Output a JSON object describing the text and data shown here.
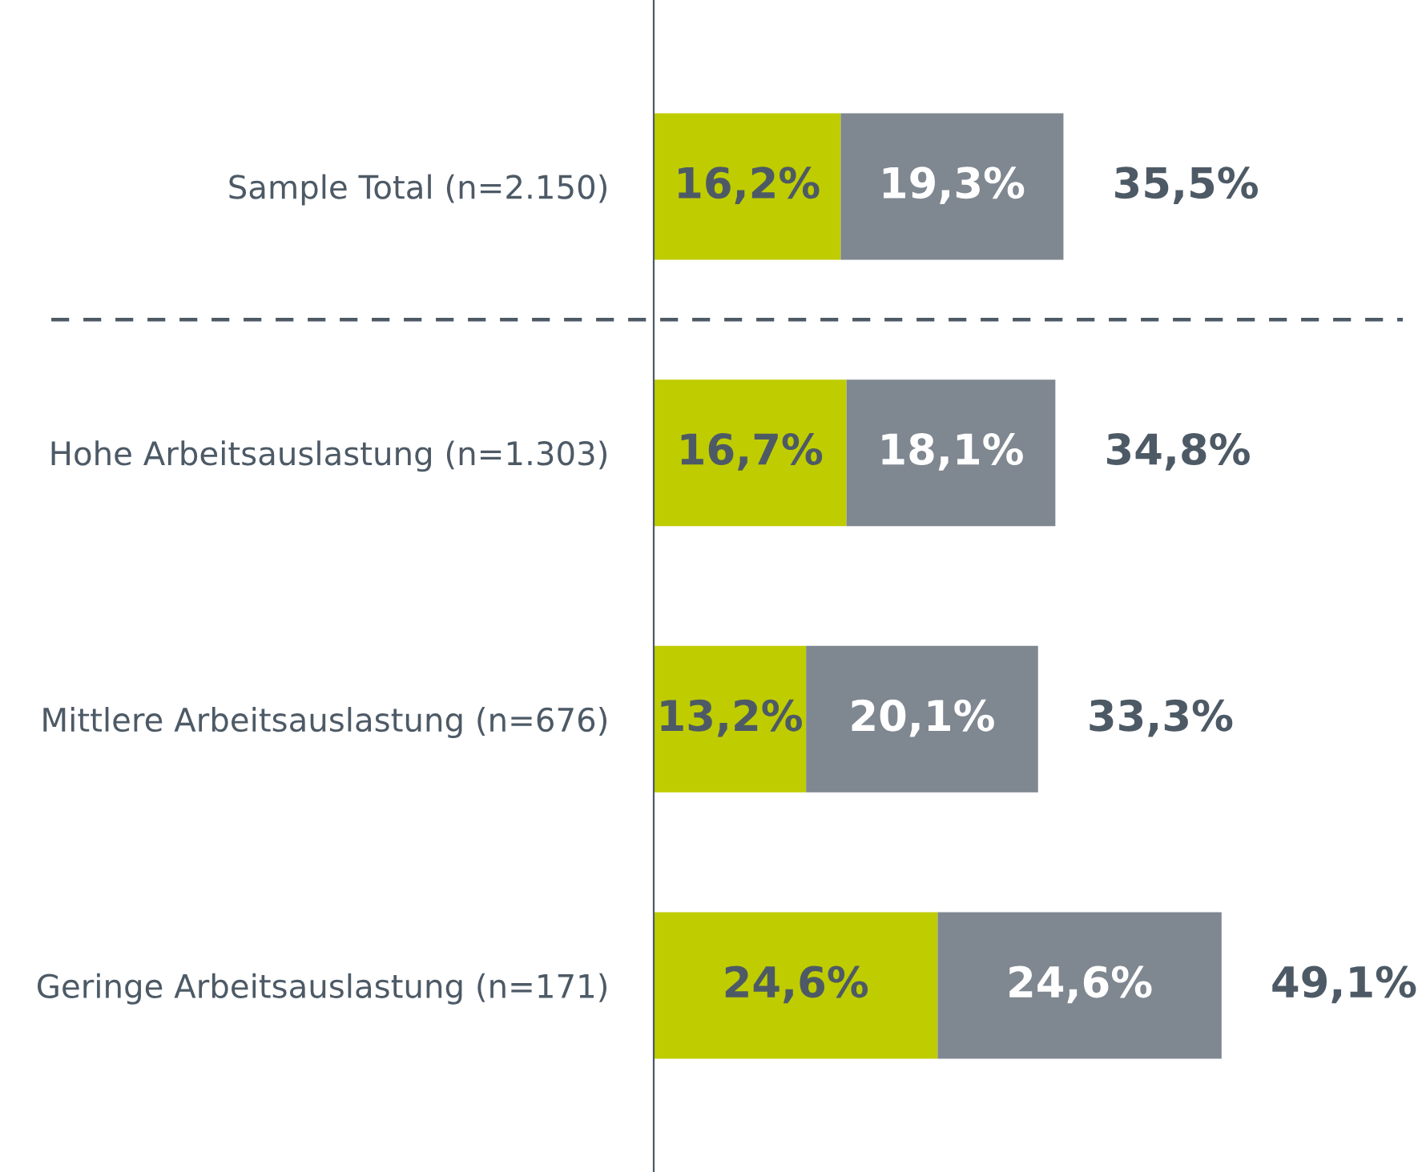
{
  "chart_data": {
    "type": "bar",
    "orientation": "horizontal",
    "stacked": true,
    "categories": [
      "Sample Total (n=2.150)",
      "Hohe Arbeitsauslastung (n=1.303)",
      "Mittlere Arbeitsauslastung (n=676)",
      "Geringe Arbeitsauslastung (n=171)"
    ],
    "series": [
      {
        "color": "#bfcc00",
        "values": [
          16.2,
          16.7,
          13.2,
          24.6
        ],
        "value_labels": [
          "16,2%",
          "16,7%",
          "13,2%",
          "24,6%"
        ]
      },
      {
        "color": "#7f8790",
        "values": [
          19.3,
          18.1,
          20.1,
          24.6
        ],
        "value_labels": [
          "19,3%",
          "18,1%",
          "20,1%",
          "24,6%"
        ]
      }
    ],
    "totals": [
      "35,5%",
      "34,8%",
      "33,3%",
      "49,1%"
    ],
    "tick_labels": "y",
    "grid": false,
    "legend": false
  }
}
